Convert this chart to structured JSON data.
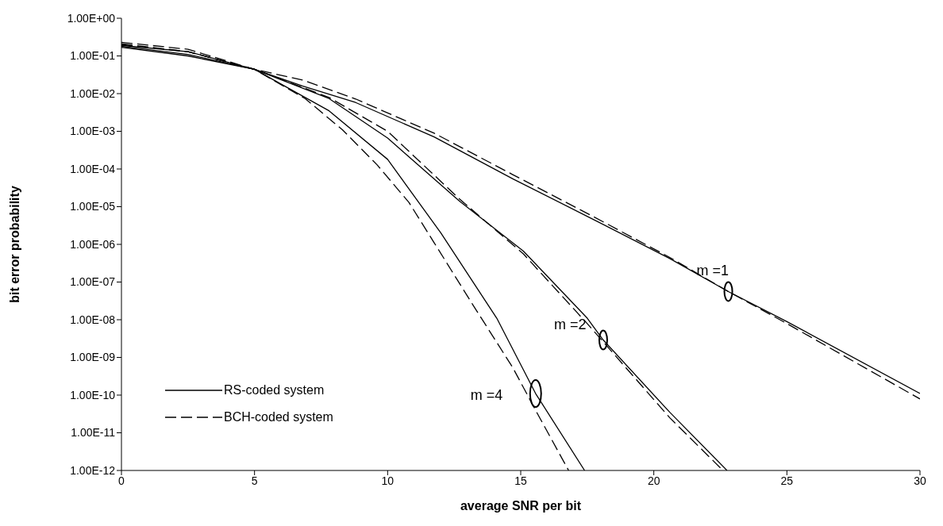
{
  "chart_data": {
    "type": "line",
    "xlabel": "average SNR per bit",
    "ylabel": "bit error probability",
    "log": "y",
    "legend": "bottom left",
    "marker": "none",
    "xlim": [
      0,
      30
    ],
    "xticks": [
      0,
      5,
      10,
      15,
      20,
      25,
      30
    ],
    "ylim": [
      1e-12,
      1
    ],
    "yticks": [
      {
        "value": 1,
        "label": "1.00E+00"
      },
      {
        "value": 0.1,
        "label": "1.00E-01"
      },
      {
        "value": 0.01,
        "label": "1.00E-02"
      },
      {
        "value": 0.001,
        "label": "1.00E-03"
      },
      {
        "value": 0.0001,
        "label": "1.00E-04"
      },
      {
        "value": 1e-05,
        "label": "1.00E-05"
      },
      {
        "value": 1e-06,
        "label": "1.00E-06"
      },
      {
        "value": 1e-07,
        "label": "1.00E-07"
      },
      {
        "value": 1e-08,
        "label": "1.00E-08"
      },
      {
        "value": 1e-09,
        "label": "1.00E-09"
      },
      {
        "value": 1e-10,
        "label": "1.00E-10"
      },
      {
        "value": 1e-11,
        "label": "1.00E-11"
      },
      {
        "value": 1e-12,
        "label": "1.00E-12"
      }
    ],
    "series": [
      {
        "name": "RS-coded system",
        "color": "#000000",
        "line_style": "solid",
        "x": [
          0,
          2.5,
          5,
          6.8,
          8.8,
          11.75,
          14.7,
          17.7,
          20.6,
          22.8,
          25,
          30
        ],
        "values": [
          0.17,
          0.1,
          0.044,
          0.016,
          0.0058,
          0.00071,
          5.5e-05,
          4.7e-06,
          4.2e-07,
          5.6e-08,
          8.9e-09,
          1.1e-10
        ]
      },
      {
        "color": "#000000",
        "line_style": "solid",
        "x": [
          0,
          2.5,
          5,
          7.8,
          10,
          12.7,
          15.1,
          17.5,
          18.1,
          20.6,
          22.75
        ],
        "values": [
          0.18,
          0.11,
          0.044,
          0.0074,
          0.00066,
          1.4e-05,
          6.6e-07,
          1.1e-08,
          2.9e-09,
          3.5e-11,
          1e-12
        ]
      },
      {
        "color": "#000000",
        "line_style": "solid",
        "x": [
          0,
          2.5,
          5,
          7.8,
          10,
          12,
          14.1,
          15.56,
          17.4
        ],
        "values": [
          0.19,
          0.13,
          0.044,
          0.0035,
          0.00018,
          2e-06,
          1.1e-08,
          1.1e-10,
          1e-12
        ]
      },
      {
        "name": "BCH-coded system",
        "color": "#000000",
        "line_style": "dashed",
        "x": [
          0,
          2.5,
          5,
          6.8,
          8.8,
          11.75,
          14.7,
          17.7,
          20.6,
          22.8,
          25,
          30
        ],
        "values": [
          0.23,
          0.15,
          0.044,
          0.023,
          0.0072,
          0.00089,
          7.1e-05,
          5.6e-06,
          4.5e-07,
          5.6e-08,
          7.9e-09,
          7.9e-11
        ]
      },
      {
        "color": "#000000",
        "line_style": "dashed",
        "x": [
          0,
          2.5,
          5,
          7.8,
          10,
          12.7,
          15.1,
          17.5,
          20.6,
          22.6
        ],
        "values": [
          0.21,
          0.13,
          0.044,
          0.0079,
          0.001,
          1.6e-05,
          5.6e-07,
          7.9e-09,
          2.5e-11,
          1e-12
        ]
      },
      {
        "color": "#000000",
        "line_style": "dashed",
        "x": [
          0,
          2.5,
          5,
          6.9,
          8.3,
          9.6,
          10.8,
          11.75,
          13.2,
          14.7,
          15.6,
          16.8
        ],
        "values": [
          0.2,
          0.13,
          0.044,
          0.0074,
          0.0011,
          0.00013,
          1.3e-05,
          1.1e-06,
          2.5e-08,
          5.4e-10,
          3.5e-11,
          1e-12
        ]
      }
    ],
    "annotations": [
      {
        "text": "m =1",
        "x": 22.8,
        "y": 5.6e-08
      },
      {
        "text": "m =2",
        "x": 18.1,
        "y": 2.9e-09
      },
      {
        "text": "m =4",
        "x": 15.56,
        "y": 1.1e-10
      }
    ]
  }
}
